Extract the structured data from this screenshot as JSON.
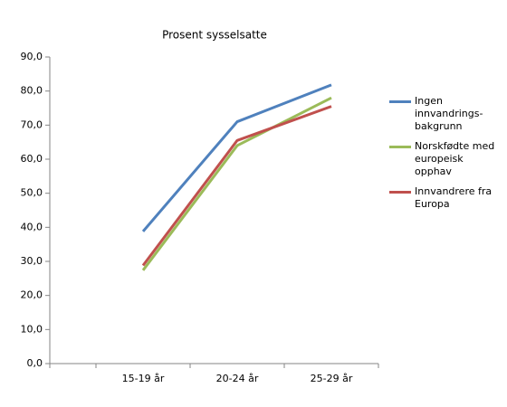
{
  "chart_data": {
    "type": "line",
    "title": "Prosent sysselsatte",
    "categories": [
      "15-19 år",
      "20-24 år",
      "25-29 år"
    ],
    "series": [
      {
        "name": "Ingen innvandrings-bakgrunn",
        "color": "#4f81bd",
        "values": [
          38.8,
          71.0,
          81.8
        ]
      },
      {
        "name": "Norskfødte med europeisk opphav",
        "color": "#9bbb59",
        "values": [
          27.4,
          64.0,
          78.0
        ]
      },
      {
        "name": "Innvandrere fra Europa",
        "color": "#c0504d",
        "values": [
          28.8,
          65.5,
          75.5
        ]
      }
    ],
    "ylim": [
      0,
      90
    ],
    "yticks": [
      {
        "value": 0,
        "label": "0,0"
      },
      {
        "value": 10,
        "label": "10,0"
      },
      {
        "value": 20,
        "label": "20,0"
      },
      {
        "value": 30,
        "label": "30,0"
      },
      {
        "value": 40,
        "label": "40,0"
      },
      {
        "value": 50,
        "label": "50,0"
      },
      {
        "value": 60,
        "label": "60,0"
      },
      {
        "value": 70,
        "label": "70,0"
      },
      {
        "value": 80,
        "label": "80,0"
      },
      {
        "value": 90,
        "label": "90,0"
      }
    ],
    "grid": false,
    "legend": "right"
  }
}
